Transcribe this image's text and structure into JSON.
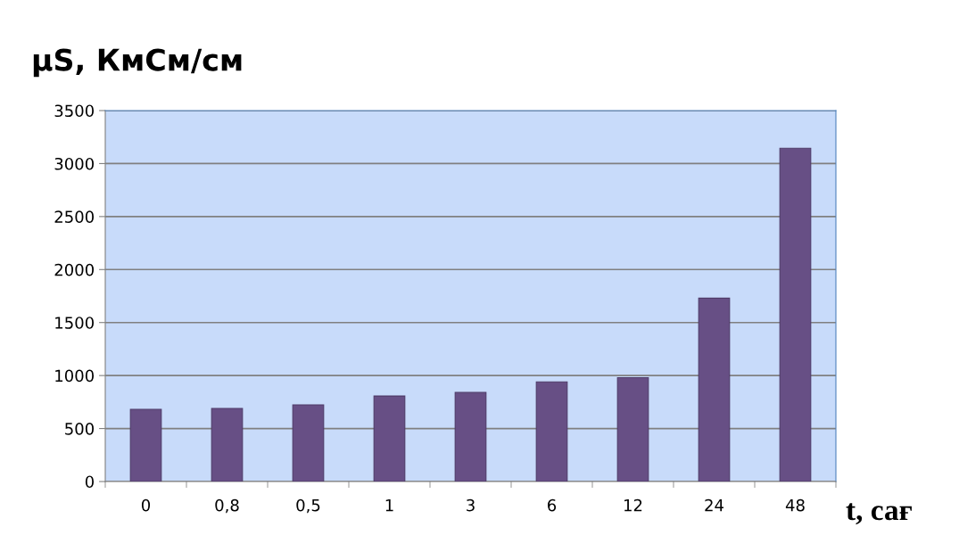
{
  "chart_data": {
    "type": "bar",
    "ylabel": "µS, КмСм/см",
    "xlabel": "t, сағ",
    "categories": [
      "0",
      "0,8",
      "0,5",
      "1",
      "3",
      "6",
      "12",
      "24",
      "48"
    ],
    "values": [
      680,
      690,
      723,
      807,
      840,
      940,
      980,
      1730,
      3144
    ],
    "color": "#674f85",
    "ylim": [
      0,
      3500
    ],
    "yticks": [
      0,
      500,
      1000,
      1500,
      2000,
      2500,
      3000,
      3500
    ],
    "grid": "y"
  }
}
